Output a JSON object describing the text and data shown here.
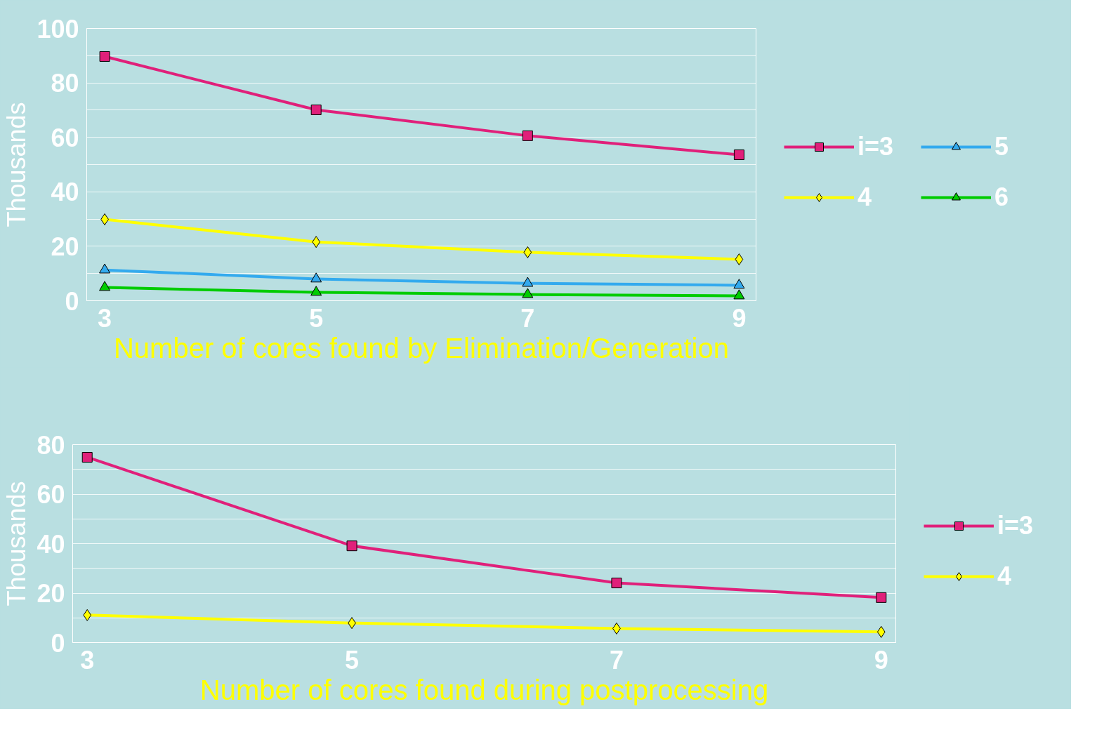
{
  "chart_data": [
    {
      "type": "line",
      "xlabel": "Number of cores found by Elimination/Generation",
      "ylabel": "Thousands",
      "x": [
        3,
        5,
        7,
        9
      ],
      "xlim": [
        2.83,
        9.16
      ],
      "xticks": [
        3,
        5,
        7,
        9
      ],
      "ylim": [
        0,
        100
      ],
      "yticks": [
        0,
        {
          "value": 10,
          "label": null
        },
        20,
        {
          "value": 30,
          "label": null
        },
        40,
        {
          "value": 50,
          "label": null
        },
        60,
        {
          "value": 70,
          "label": null
        },
        80,
        {
          "value": 90,
          "label": null
        },
        100
      ],
      "grid": "y",
      "legend": "right",
      "series": [
        {
          "name": "i=3",
          "color": "#e0207a",
          "marker": "square",
          "values": [
            89.7,
            70.1,
            60.6,
            53.6
          ]
        },
        {
          "name": "4",
          "color": "#ffff00",
          "marker": "diamond",
          "values": [
            29.9,
            21.6,
            17.8,
            15.2
          ]
        },
        {
          "name": "5",
          "color": "#33aaee",
          "marker": "triangle",
          "values": [
            11.3,
            8.0,
            6.4,
            5.7
          ]
        },
        {
          "name": "6",
          "color": "#00cc00",
          "marker": "triangle",
          "values": [
            4.9,
            3.1,
            2.3,
            1.8
          ]
        }
      ]
    },
    {
      "type": "line",
      "xlabel": "Number of cores found during postprocessing",
      "ylabel": "Thousands",
      "x": [
        3,
        5,
        7,
        9
      ],
      "xlim": [
        2.89,
        9.11
      ],
      "xticks": [
        3,
        5,
        7,
        9
      ],
      "ylim": [
        0,
        80
      ],
      "yticks": [
        0,
        {
          "value": 10,
          "label": null
        },
        20,
        {
          "value": 30,
          "label": null
        },
        40,
        {
          "value": 50,
          "label": null
        },
        60,
        {
          "value": 70,
          "label": null
        },
        80
      ],
      "grid": "y",
      "legend": "right",
      "series": [
        {
          "name": "i=3",
          "color": "#e0207a",
          "marker": "square",
          "values": [
            74.9,
            39.1,
            24.1,
            18.2
          ]
        },
        {
          "name": "4",
          "color": "#ffff00",
          "marker": "diamond",
          "values": [
            11.1,
            7.9,
            5.7,
            4.3
          ]
        }
      ]
    }
  ]
}
